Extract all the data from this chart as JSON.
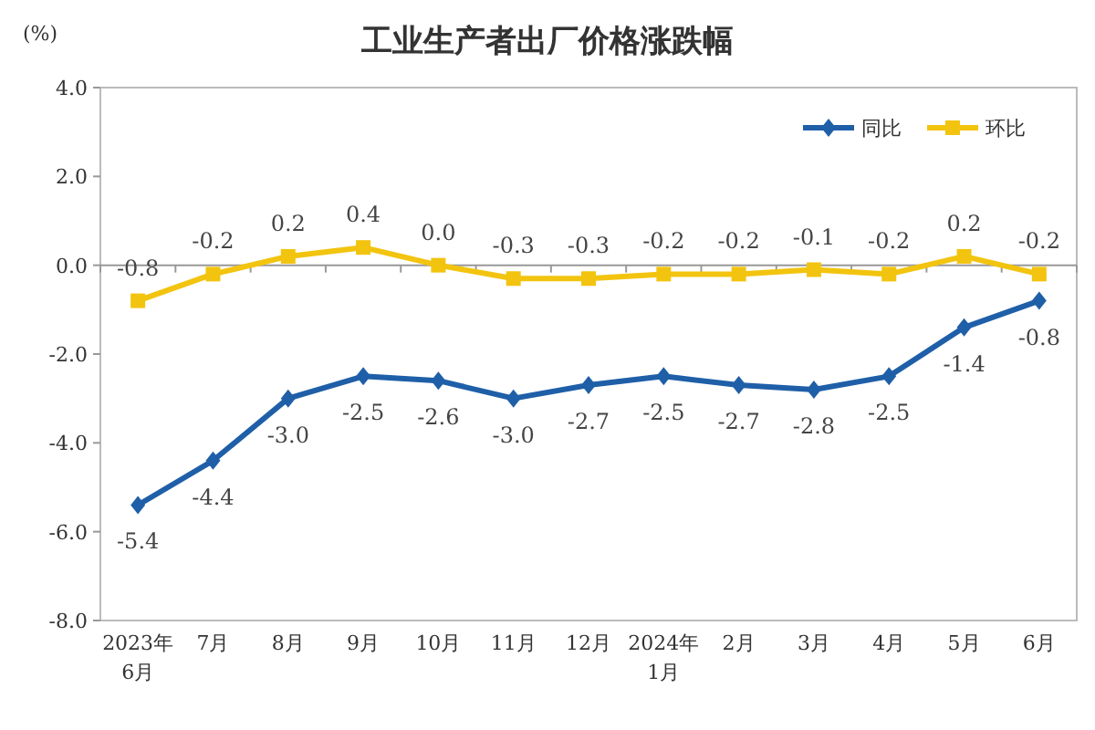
{
  "chart_data": {
    "type": "line",
    "title": "工业生产者出厂价格涨跌幅",
    "ylabel": "(%)",
    "categories": [
      "2023年\n6月",
      "7月",
      "8月",
      "9月",
      "10月",
      "11月",
      "12月",
      "2024年\n1月",
      "2月",
      "3月",
      "4月",
      "5月",
      "6月"
    ],
    "series": [
      {
        "name": "同比",
        "color": "#1f5fa8",
        "marker": "diamond",
        "values": [
          -5.4,
          -4.4,
          -3.0,
          -2.5,
          -2.6,
          -3.0,
          -2.7,
          -2.5,
          -2.7,
          -2.8,
          -2.5,
          -1.4,
          -0.8
        ],
        "value_labels": [
          "-5.4",
          "-4.4",
          "-3.0",
          "-2.5",
          "-2.6",
          "-3.0",
          "-2.7",
          "-2.5",
          "-2.7",
          "-2.8",
          "-2.5",
          "-1.4",
          "-0.8"
        ]
      },
      {
        "name": "环比",
        "color": "#f2c40f",
        "marker": "square",
        "values": [
          -0.8,
          -0.2,
          0.2,
          0.4,
          0.0,
          -0.3,
          -0.3,
          -0.2,
          -0.2,
          -0.1,
          -0.2,
          0.2,
          -0.2
        ],
        "value_labels": [
          "-0.8",
          "-0.2",
          "0.2",
          "0.4",
          "0.0",
          "-0.3",
          "-0.3",
          "-0.2",
          "-0.2",
          "-0.1",
          "-0.2",
          "0.2",
          "-0.2"
        ]
      }
    ],
    "ylim": [
      -8,
      4
    ],
    "yticks": [
      {
        "value": -8,
        "label": "-8.0"
      },
      {
        "value": -6,
        "label": "-6.0"
      },
      {
        "value": -4,
        "label": "-4.0"
      },
      {
        "value": -2,
        "label": "-2.0"
      },
      {
        "value": 0,
        "label": "0.0"
      },
      {
        "value": 2,
        "label": "2.0"
      },
      {
        "value": 4,
        "label": "4.0"
      }
    ],
    "ref_lines": [
      {
        "axis": "y",
        "value": 0
      }
    ],
    "legend": "top right"
  }
}
